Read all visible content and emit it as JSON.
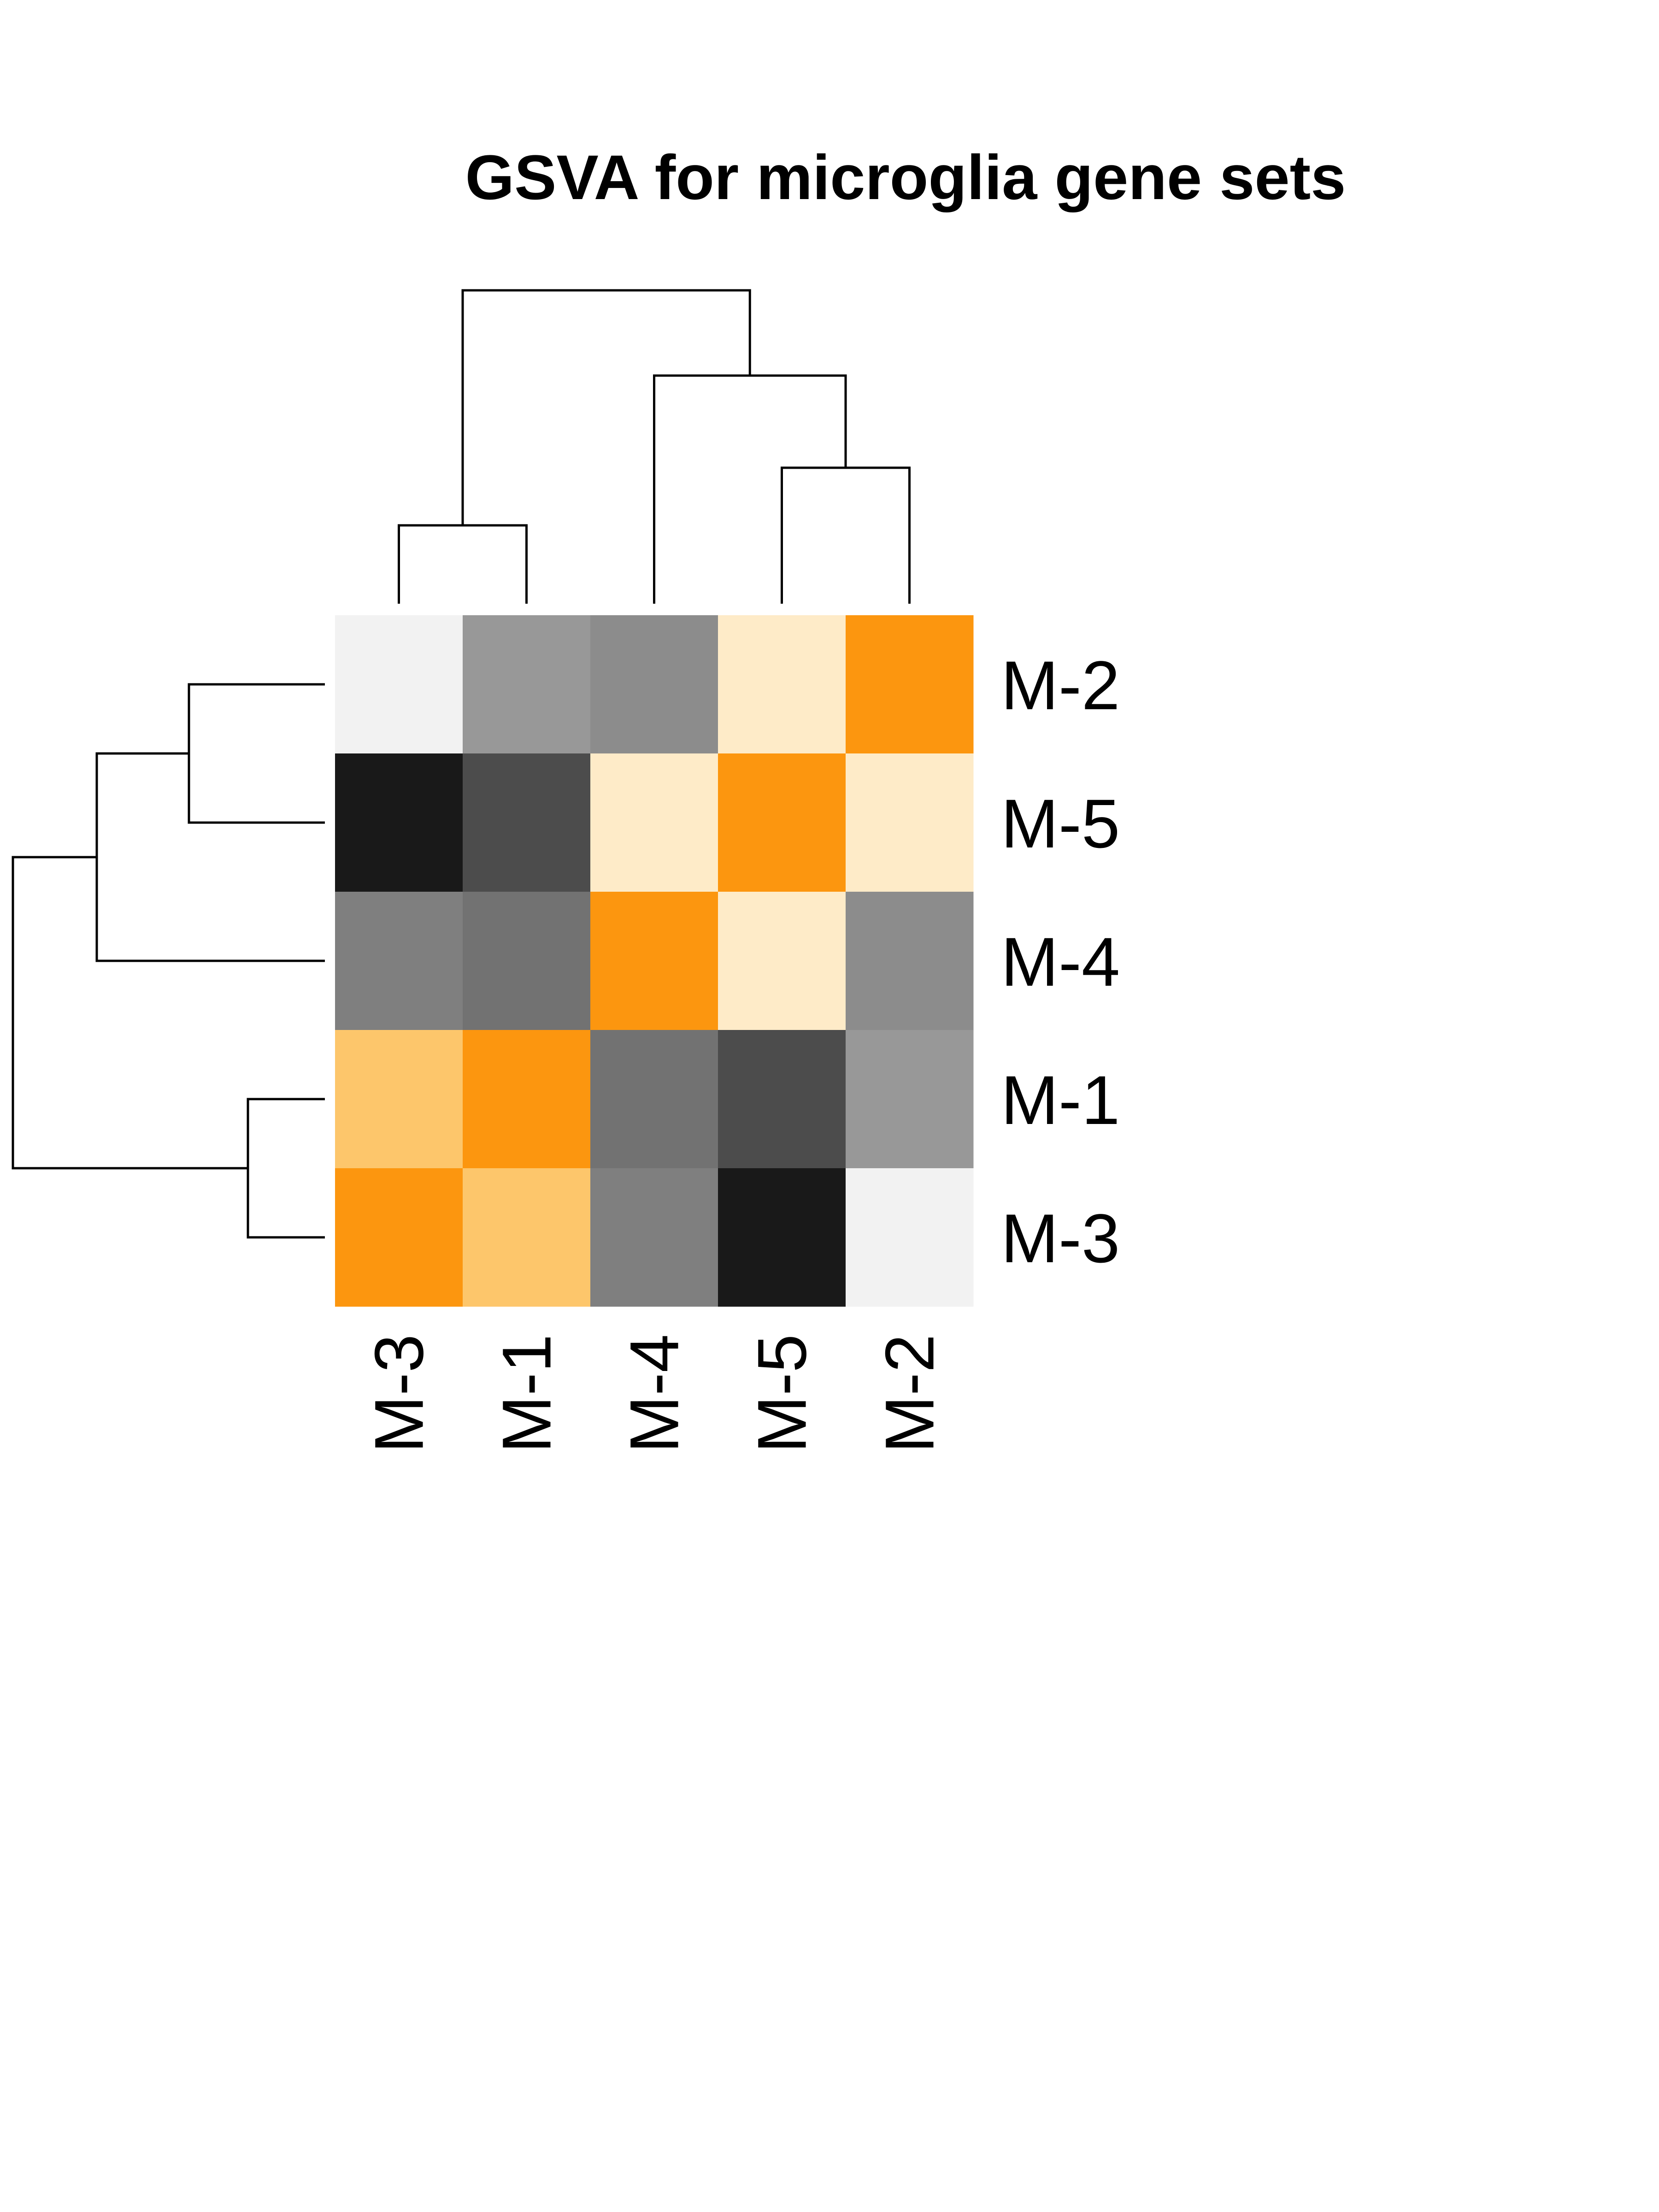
{
  "chart_data": {
    "type": "heatmap",
    "title": "GSVA for microglia gene sets",
    "column_labels": [
      "M-3",
      "M-1",
      "M-4",
      "M-5",
      "M-2"
    ],
    "row_labels": [
      "M-2",
      "M-5",
      "M-4",
      "M-1",
      "M-3"
    ],
    "cell_colors": [
      [
        "#f2f2f2",
        "#989898",
        "#8c8c8c",
        "#feebc8",
        "#fc960f"
      ],
      [
        "#191919",
        "#4c4c4c",
        "#feebc8",
        "#fc960f",
        "#feebc8"
      ],
      [
        "#7f7f7f",
        "#727272",
        "#fc960f",
        "#feebc8",
        "#8c8c8c"
      ],
      [
        "#fdc66b",
        "#fc960f",
        "#727272",
        "#4c4c4c",
        "#989898"
      ],
      [
        "#fc960f",
        "#fdc66b",
        "#7f7f7f",
        "#191919",
        "#f2f2f2"
      ]
    ],
    "column_dendrogram": "((M-3,M-1),(M-4,(M-5,M-2)))",
    "row_dendrogram": "(((M-2,M-5),M-4),(M-1,M-3))",
    "legend": "none",
    "grid": false
  }
}
